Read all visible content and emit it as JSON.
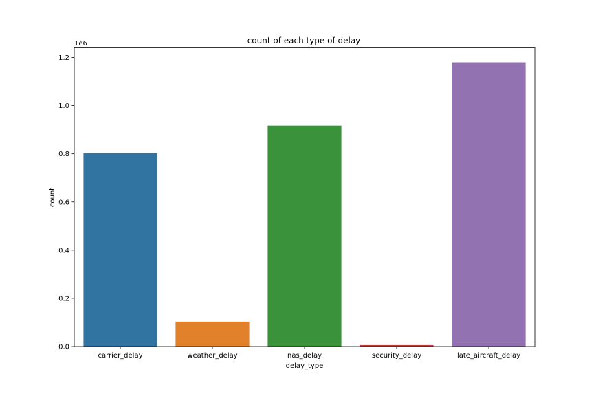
{
  "chart_data": {
    "type": "bar",
    "title": "count of each type of delay",
    "xlabel": "delay_type",
    "ylabel": "count",
    "y_offset_label": "1e6",
    "categories": [
      "carrier_delay",
      "weather_delay",
      "nas_delay",
      "security_delay",
      "late_aircraft_delay"
    ],
    "values": [
      803000,
      103000,
      917000,
      6000,
      1180000
    ],
    "colors": [
      "#3274a1",
      "#e1812c",
      "#3a923a",
      "#c03d3e",
      "#9372b2"
    ],
    "ylim": [
      0,
      1240000
    ],
    "yticks": [
      0,
      200000,
      400000,
      600000,
      800000,
      1000000,
      1200000
    ],
    "ytick_labels": [
      "0.0",
      "0.2",
      "0.4",
      "0.6",
      "0.8",
      "1.0",
      "1.2"
    ],
    "grid": false,
    "legend": "none"
  }
}
